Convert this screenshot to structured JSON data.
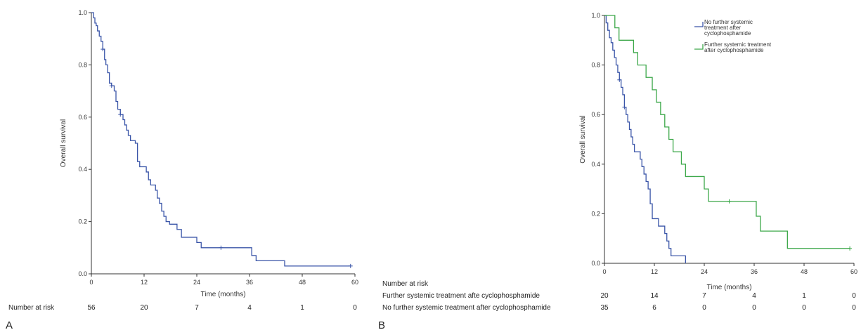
{
  "colors": {
    "blue": "#3a55a8",
    "green": "#3da84a",
    "axis": "#333333"
  },
  "chart_data": [
    {
      "type": "line",
      "subtype": "kaplan-meier",
      "panel_label": "A",
      "xlabel": "Time (months)",
      "ylabel": "Overall survival",
      "xlim": [
        0,
        60
      ],
      "ylim": [
        0,
        1.0
      ],
      "xticks": [
        0,
        12,
        24,
        36,
        48,
        60
      ],
      "yticks": [
        0.0,
        0.2,
        0.4,
        0.6,
        0.8,
        1.0
      ],
      "grid": false,
      "series": [
        {
          "color_key": "blue",
          "steps": [
            [
              0,
              1.0
            ],
            [
              0.5,
              0.98
            ],
            [
              0.8,
              0.96
            ],
            [
              1.1,
              0.95
            ],
            [
              1.4,
              0.93
            ],
            [
              1.8,
              0.91
            ],
            [
              2.2,
              0.89
            ],
            [
              2.6,
              0.86
            ],
            [
              3.0,
              0.82
            ],
            [
              3.3,
              0.8
            ],
            [
              3.7,
              0.77
            ],
            [
              4.1,
              0.73
            ],
            [
              4.6,
              0.72
            ],
            [
              5.2,
              0.7
            ],
            [
              5.6,
              0.66
            ],
            [
              6.0,
              0.63
            ],
            [
              6.6,
              0.61
            ],
            [
              7.2,
              0.59
            ],
            [
              7.6,
              0.57
            ],
            [
              8.0,
              0.55
            ],
            [
              8.4,
              0.53
            ],
            [
              8.9,
              0.51
            ],
            [
              10.0,
              0.5
            ],
            [
              10.5,
              0.43
            ],
            [
              11.0,
              0.41
            ],
            [
              12.5,
              0.39
            ],
            [
              13.0,
              0.36
            ],
            [
              13.5,
              0.34
            ],
            [
              14.6,
              0.32
            ],
            [
              15.0,
              0.29
            ],
            [
              15.5,
              0.27
            ],
            [
              16.0,
              0.24
            ],
            [
              16.5,
              0.22
            ],
            [
              17.0,
              0.2
            ],
            [
              17.8,
              0.19
            ],
            [
              19.5,
              0.17
            ],
            [
              20.5,
              0.14
            ],
            [
              24.0,
              0.12
            ],
            [
              25.0,
              0.1
            ],
            [
              36.5,
              0.07
            ],
            [
              37.5,
              0.05
            ],
            [
              44.0,
              0.03
            ],
            [
              59,
              0.03
            ]
          ],
          "censors": [
            [
              2.6,
              0.86
            ],
            [
              4.6,
              0.72
            ],
            [
              6.6,
              0.61
            ],
            [
              29.5,
              0.1
            ],
            [
              59.0,
              0.03
            ]
          ]
        }
      ],
      "risk_table": {
        "label": "Number at risk",
        "rows": [
          {
            "label": "",
            "counts": [
              "56",
              "20",
              "7",
              "4",
              "1",
              "0"
            ]
          }
        ]
      }
    },
    {
      "type": "line",
      "subtype": "kaplan-meier",
      "panel_label": "B",
      "xlabel": "Time (months)",
      "ylabel": "Overall survival",
      "xlim": [
        0,
        60
      ],
      "ylim": [
        0,
        1.0
      ],
      "xticks": [
        0,
        12,
        24,
        36,
        48,
        60
      ],
      "yticks": [
        0.0,
        0.2,
        0.4,
        0.6,
        0.8,
        1.0
      ],
      "grid": false,
      "legend_position": "top-right",
      "series": [
        {
          "name": "No further systemic treatment after cyclophosphamide",
          "legend_lines": [
            "No further systemic",
            "treatment after",
            "cyclophosphamide"
          ],
          "color_key": "blue",
          "steps": [
            [
              0,
              1.0
            ],
            [
              0.4,
              0.97
            ],
            [
              0.8,
              0.94
            ],
            [
              1.2,
              0.91
            ],
            [
              1.6,
              0.89
            ],
            [
              2.0,
              0.86
            ],
            [
              2.4,
              0.83
            ],
            [
              2.8,
              0.8
            ],
            [
              3.2,
              0.77
            ],
            [
              3.6,
              0.74
            ],
            [
              4.0,
              0.71
            ],
            [
              4.4,
              0.68
            ],
            [
              4.8,
              0.63
            ],
            [
              5.2,
              0.6
            ],
            [
              5.6,
              0.57
            ],
            [
              6.0,
              0.54
            ],
            [
              6.4,
              0.51
            ],
            [
              6.8,
              0.48
            ],
            [
              7.2,
              0.45
            ],
            [
              8.6,
              0.42
            ],
            [
              9.0,
              0.39
            ],
            [
              9.5,
              0.36
            ],
            [
              10.0,
              0.33
            ],
            [
              10.5,
              0.3
            ],
            [
              11.0,
              0.24
            ],
            [
              11.5,
              0.18
            ],
            [
              13.0,
              0.15
            ],
            [
              14.5,
              0.12
            ],
            [
              15.0,
              0.09
            ],
            [
              15.5,
              0.06
            ],
            [
              16.0,
              0.03
            ],
            [
              19.5,
              0.0
            ]
          ],
          "censors": [
            [
              3.6,
              0.74
            ],
            [
              4.8,
              0.63
            ]
          ]
        },
        {
          "name": "Further systemic treatment after cyclophosphamide",
          "legend_lines": [
            "Further systemic treatment",
            "after cyclophosphamide"
          ],
          "color_key": "green",
          "steps": [
            [
              0,
              1.0
            ],
            [
              2.5,
              0.95
            ],
            [
              3.5,
              0.9
            ],
            [
              7.0,
              0.85
            ],
            [
              8.0,
              0.8
            ],
            [
              10.0,
              0.75
            ],
            [
              11.5,
              0.7
            ],
            [
              12.5,
              0.65
            ],
            [
              13.5,
              0.6
            ],
            [
              14.5,
              0.55
            ],
            [
              15.5,
              0.5
            ],
            [
              16.5,
              0.45
            ],
            [
              18.5,
              0.4
            ],
            [
              19.5,
              0.35
            ],
            [
              24.0,
              0.3
            ],
            [
              25.0,
              0.25
            ],
            [
              35.0,
              0.25
            ],
            [
              36.5,
              0.19
            ],
            [
              37.5,
              0.13
            ],
            [
              44.0,
              0.06
            ],
            [
              59,
              0.06
            ]
          ],
          "censors": [
            [
              30.0,
              0.25
            ],
            [
              59.0,
              0.06
            ]
          ]
        }
      ],
      "risk_table": {
        "label": "Number at risk",
        "rows": [
          {
            "label": "Further systemic treatment afte cyclophosphamide",
            "counts": [
              "20",
              "14",
              "7",
              "4",
              "1",
              "0"
            ]
          },
          {
            "label": "No further systemic treatment after cyclophosphamide",
            "counts": [
              "35",
              "6",
              "0",
              "0",
              "0",
              "0"
            ]
          }
        ]
      }
    }
  ]
}
